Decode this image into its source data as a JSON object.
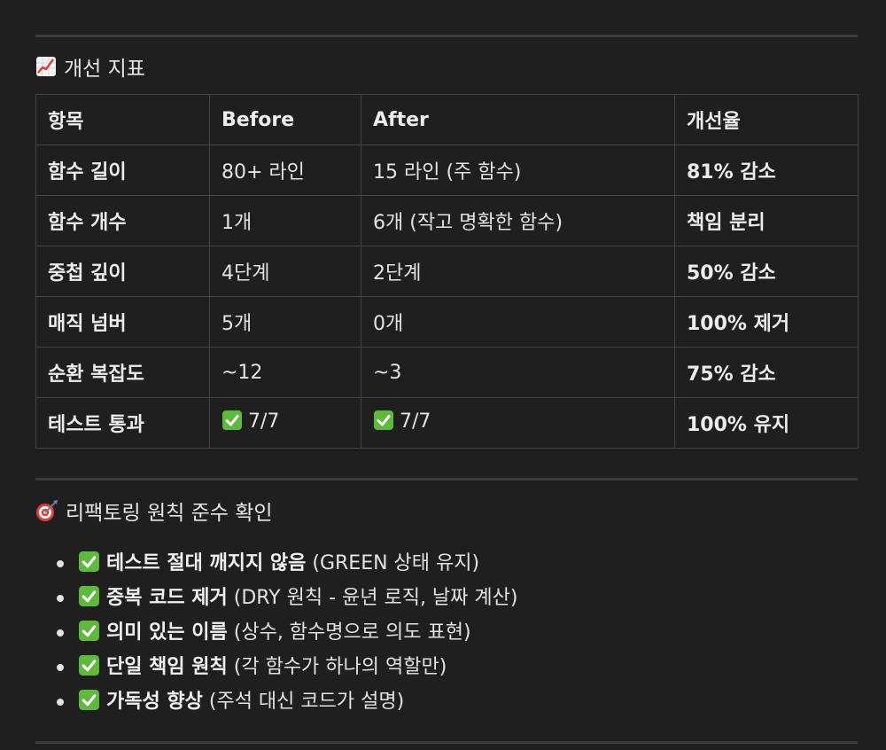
{
  "section_metrics": {
    "icon": "chart-increasing-icon",
    "title": "개선 지표"
  },
  "table": {
    "headers": [
      "항목",
      "Before",
      "After",
      "개선율"
    ],
    "rows": [
      {
        "item": "함수 길이",
        "before": "80+ 라인",
        "after": "15 라인 (주 함수)",
        "rate": "81% 감소"
      },
      {
        "item": "함수 개수",
        "before": "1개",
        "after": "6개 (작고 명확한 함수)",
        "rate": "책임 분리"
      },
      {
        "item": "중첩 깊이",
        "before": "4단계",
        "after": "2단계",
        "rate": "50% 감소"
      },
      {
        "item": "매직 넘버",
        "before": "5개",
        "after": "0개",
        "rate": "100% 제거"
      },
      {
        "item": "순환 복잡도",
        "before": "~12",
        "after": "~3",
        "rate": "75% 감소"
      },
      {
        "item": "테스트 통과",
        "before": "7/7",
        "after": "7/7",
        "rate": "100% 유지"
      }
    ]
  },
  "section_principles": {
    "icon": "direct-hit-icon",
    "title": "리팩토링 원칙 준수 확인"
  },
  "checklist": [
    {
      "bold": "테스트 절대 깨지지 않음",
      "rest": " (GREEN 상태 유지)"
    },
    {
      "bold": "중복 코드 제거",
      "rest": " (DRY 원칙 - 윤년 로직, 날짜 계산)"
    },
    {
      "bold": "의미 있는 이름",
      "rest": " (상수, 함수명으로 의도 표현)"
    },
    {
      "bold": "단일 책임 원칙",
      "rest": " (각 함수가 하나의 역할만)"
    },
    {
      "bold": "가독성 향상",
      "rest": " (주석 대신 코드가 설명)"
    }
  ],
  "colors": {
    "background": "#1f1f1f",
    "check_green": "#5dba3b",
    "rule": "#3c3c3c",
    "table_border": "#444444"
  }
}
